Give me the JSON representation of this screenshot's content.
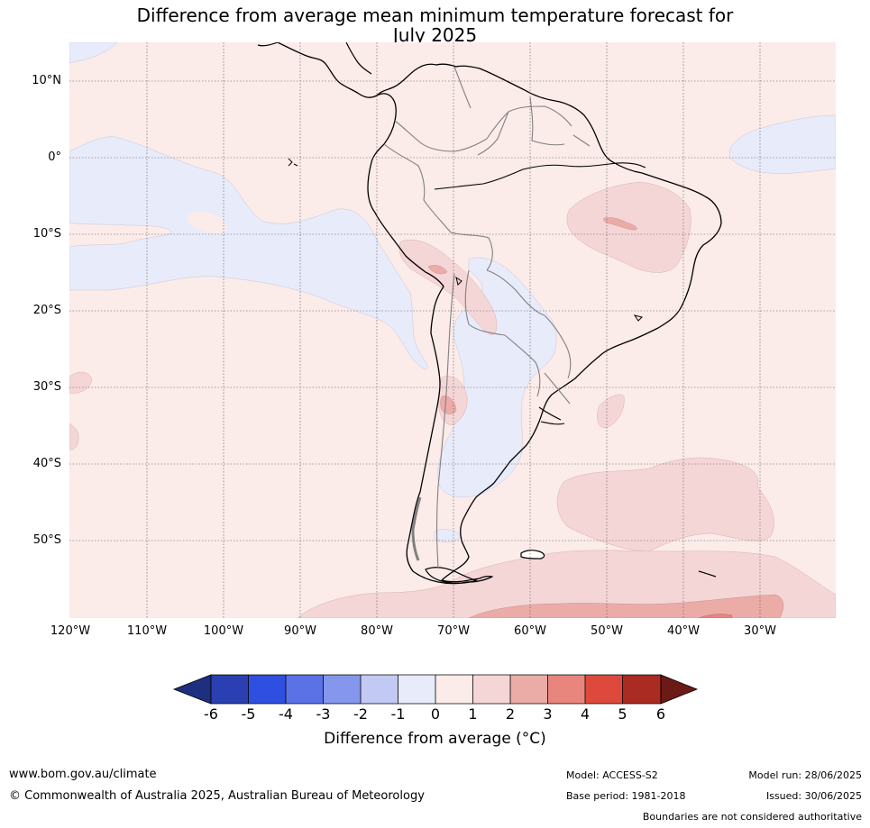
{
  "title": {
    "line1": "Difference from average mean minimum temperature forecast for",
    "line2": "July 2025"
  },
  "map": {
    "lat_labels": [
      "10°N",
      "0°",
      "10°S",
      "20°S",
      "30°S",
      "40°S",
      "50°S"
    ],
    "lon_labels": [
      "120°W",
      "110°W",
      "100°W",
      "90°W",
      "80°W",
      "70°W",
      "60°W",
      "50°W",
      "40°W",
      "30°W"
    ],
    "colors": {
      "bin_0_1": "#fbebe9",
      "bin_m1_0": "#e8ebfa",
      "bin_1_2": "#f5d6d6",
      "bin_2_3": "#ebaca8",
      "bin_3_4": "#e8857d",
      "coastline": "#000000",
      "borders": "#808080",
      "gridlines": "#555555"
    }
  },
  "colorbar": {
    "ticks": [
      "-6",
      "-5",
      "-4",
      "-3",
      "-2",
      "-1",
      "0",
      "1",
      "2",
      "3",
      "4",
      "5",
      "6"
    ],
    "colors": [
      "#1f2f7f",
      "#2a3fb1",
      "#2f4fe0",
      "#5a72e6",
      "#8597ec",
      "#c2c9f3",
      "#e8ebfa",
      "#fbebe9",
      "#f5d6d6",
      "#ebaca8",
      "#e8857d",
      "#dd4a3d",
      "#aa2b22",
      "#6b1a15"
    ],
    "title": "Difference from average (°C)"
  },
  "footer": {
    "url": "www.bom.gov.au/climate",
    "copyright": "© Commonwealth of Australia 2025, Australian Bureau of Meteorology",
    "model": "Model: ACCESS-S2",
    "base_period": "Base period: 1981-2018",
    "model_run": "Model run: 28/06/2025",
    "issued": "Issued: 30/06/2025",
    "disclaimer": "Boundaries are not considered authoritative"
  }
}
